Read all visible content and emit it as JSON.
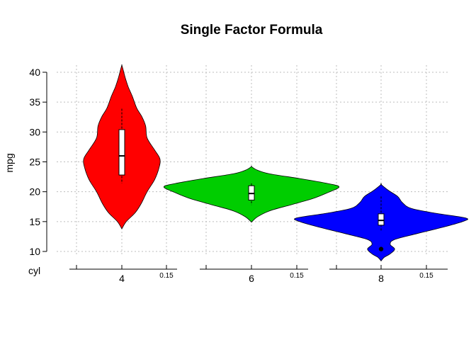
{
  "chart_data": {
    "type": "violin",
    "title": "Single Factor Formula",
    "ylabel": "mpg",
    "xlabel": "cyl",
    "ylim": [
      10,
      41
    ],
    "yticks": [
      10,
      15,
      20,
      25,
      30,
      35,
      40
    ],
    "grid": true,
    "density_tick_label": "0.15",
    "categories": [
      "4",
      "6",
      "8"
    ],
    "series": [
      {
        "category": "4",
        "color": "#ff0000",
        "box": {
          "min": 21.4,
          "q1": 22.8,
          "median": 26.0,
          "q3": 30.4,
          "max": 33.9
        },
        "range": [
          13.8,
          41.2
        ],
        "density": [
          [
            13.8,
            0.0
          ],
          [
            15.0,
            0.015
          ],
          [
            16.5,
            0.045
          ],
          [
            18.0,
            0.065
          ],
          [
            20.0,
            0.085
          ],
          [
            22.0,
            0.11
          ],
          [
            24.0,
            0.125
          ],
          [
            25.5,
            0.128
          ],
          [
            27.0,
            0.11
          ],
          [
            29.0,
            0.085
          ],
          [
            31.0,
            0.08
          ],
          [
            32.5,
            0.068
          ],
          [
            34.0,
            0.05
          ],
          [
            36.0,
            0.035
          ],
          [
            37.5,
            0.022
          ],
          [
            39.0,
            0.012
          ],
          [
            40.5,
            0.004
          ],
          [
            41.2,
            0.0
          ]
        ],
        "outliers": []
      },
      {
        "category": "6",
        "color": "#00cd00",
        "box": {
          "min": 17.8,
          "q1": 18.6,
          "median": 19.7,
          "q3": 21.0,
          "max": 21.4
        },
        "range": [
          14.9,
          24.2
        ],
        "density": [
          [
            14.9,
            0.0
          ],
          [
            15.8,
            0.02
          ],
          [
            16.8,
            0.06
          ],
          [
            17.8,
            0.13
          ],
          [
            18.8,
            0.2
          ],
          [
            19.8,
            0.25
          ],
          [
            20.8,
            0.29
          ],
          [
            21.4,
            0.25
          ],
          [
            22.2,
            0.16
          ],
          [
            23.0,
            0.06
          ],
          [
            23.6,
            0.02
          ],
          [
            24.2,
            0.0
          ]
        ],
        "outliers": []
      },
      {
        "category": "8",
        "color": "#0000ff",
        "box": {
          "min": 13.3,
          "q1": 14.4,
          "median": 15.2,
          "q3": 16.3,
          "max": 19.2
        },
        "range": [
          8.4,
          21.2
        ],
        "density": [
          [
            8.4,
            0.0
          ],
          [
            9.0,
            0.01
          ],
          [
            9.6,
            0.03
          ],
          [
            10.4,
            0.045
          ],
          [
            11.2,
            0.03
          ],
          [
            12.0,
            0.045
          ],
          [
            13.0,
            0.12
          ],
          [
            14.0,
            0.2
          ],
          [
            15.0,
            0.27
          ],
          [
            15.6,
            0.28
          ],
          [
            16.4,
            0.18
          ],
          [
            17.2,
            0.1
          ],
          [
            18.2,
            0.07
          ],
          [
            19.2,
            0.055
          ],
          [
            20.2,
            0.025
          ],
          [
            21.2,
            0.0
          ]
        ],
        "outliers": [
          10.4
        ]
      }
    ]
  }
}
